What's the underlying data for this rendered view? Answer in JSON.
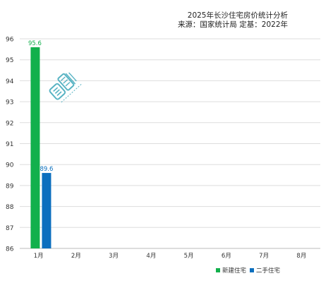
{
  "header": {
    "title": "2025年长沙住宅房价统计分析",
    "subtitle": "来源：国家统计局 定基：2022年"
  },
  "colors": {
    "new_homes": "#12b04c",
    "second_hand": "#0b6fbe",
    "grid": "#dddddd",
    "axis": "#bbbbbb"
  },
  "chart_data": {
    "type": "bar",
    "categories": [
      "1月",
      "2月",
      "3月",
      "4月",
      "5月",
      "6月",
      "7月",
      "8月"
    ],
    "series": [
      {
        "name": "新建住宅",
        "values": [
          95.6,
          null,
          null,
          null,
          null,
          null,
          null,
          null
        ]
      },
      {
        "name": "二手住宅",
        "values": [
          89.6,
          null,
          null,
          null,
          null,
          null,
          null,
          null
        ]
      }
    ],
    "ylim": [
      86,
      96
    ],
    "yticks": [
      86,
      87,
      88,
      89,
      90,
      91,
      92,
      93,
      94,
      95,
      96
    ],
    "grid": true,
    "legend_position": "bottom-right",
    "title": "2025年长沙住宅房价统计分析",
    "subtitle": "来源：国家统计局 定基：2022年"
  },
  "legend": {
    "new_label": "新建住宅",
    "second_label": "二手住宅"
  },
  "watermark_icon": "logo-watermark"
}
